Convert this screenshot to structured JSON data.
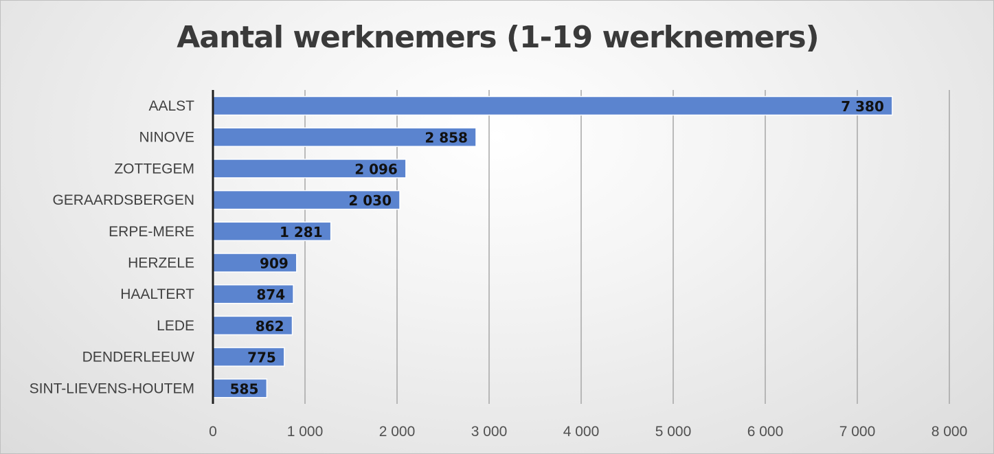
{
  "chart_data": {
    "type": "bar",
    "orientation": "horizontal",
    "title": "Aantal werknemers (1-19 werknemers)",
    "categories": [
      "AALST",
      "NINOVE",
      "ZOTTEGEM",
      "GERAARDSBERGEN",
      "ERPE-MERE",
      "HERZELE",
      "HAALTERT",
      "LEDE",
      "DENDERLEEUW",
      "SINT-LIEVENS-HOUTEM"
    ],
    "values": [
      7380,
      2858,
      2096,
      2030,
      1281,
      909,
      874,
      862,
      775,
      585
    ],
    "value_labels": [
      "7 380",
      "2 858",
      "2 096",
      "2 030",
      "1 281",
      "909",
      "874",
      "862",
      "775",
      "585"
    ],
    "xlim": [
      0,
      8000
    ],
    "xticks": [
      0,
      1000,
      2000,
      3000,
      4000,
      5000,
      6000,
      7000,
      8000
    ],
    "xtick_labels": [
      "0",
      "1 000",
      "2 000",
      "3 000",
      "4 000",
      "5 000",
      "6 000",
      "7 000",
      "8 000"
    ],
    "grid": "vertical",
    "legend": "none",
    "bar_color": "#5b84cf"
  }
}
